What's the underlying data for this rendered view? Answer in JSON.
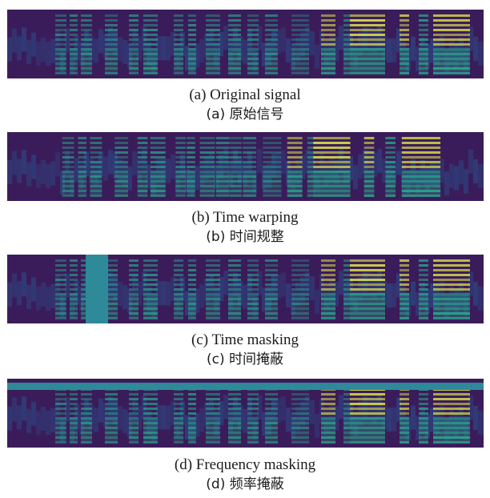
{
  "figure": {
    "panels": [
      {
        "id": "a",
        "caption_en": "(a) Original  signal",
        "caption_cn": "(a) 原始信号",
        "augmentation": "none"
      },
      {
        "id": "b",
        "caption_en": "(b) Time warping",
        "caption_cn": "(b) 时间规整",
        "augmentation": "time-warp"
      },
      {
        "id": "c",
        "caption_en": "(c) Time masking",
        "caption_cn": "(c) 时间掩蔽",
        "augmentation": "time-mask"
      },
      {
        "id": "d",
        "caption_en": "(d) Frequency masking",
        "caption_cn": "(d) 频率掩蔽",
        "augmentation": "freq-mask"
      }
    ],
    "colors": {
      "background": "#3b1c5a",
      "low": "#2a4f8a",
      "mid": "#2ba38a",
      "high": "#e0e84a",
      "mask": "#2e8a98"
    }
  }
}
